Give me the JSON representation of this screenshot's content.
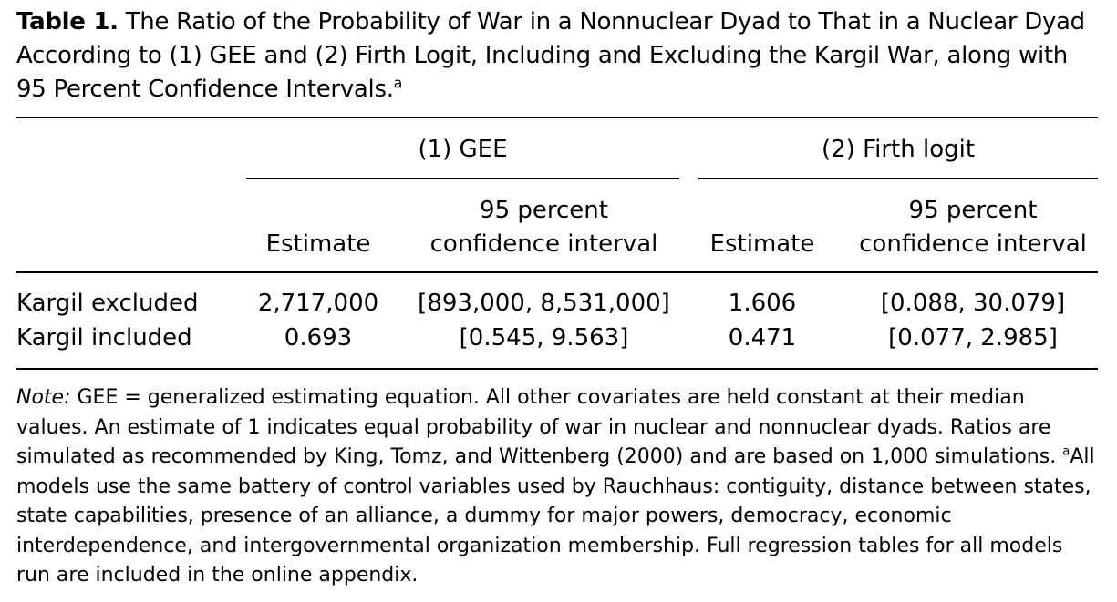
{
  "caption": {
    "label": "Table 1.",
    "text": "The Ratio of the Probability of War in a Nonnuclear Dyad to That in a Nuclear Dyad According to (1) GEE and (2) Firth Logit, Including and Excluding the Kargil War, along with 95 Percent Confidence Intervals.",
    "footnote_mark": "a"
  },
  "table": {
    "groups": [
      {
        "label": "(1) GEE"
      },
      {
        "label": "(2) Firth logit"
      }
    ],
    "subheaders": {
      "estimate": "Estimate",
      "ci_line1": "95 percent",
      "ci_line2": "confidence interval"
    },
    "rows": [
      {
        "label": "Kargil excluded",
        "gee_estimate": "2,717,000",
        "gee_ci": "[893,000, 8,531,000]",
        "firth_estimate": "1.606",
        "firth_ci": "[0.088, 30.079]"
      },
      {
        "label": "Kargil included",
        "gee_estimate": "0.693",
        "gee_ci": "[0.545, 9.563]",
        "firth_estimate": "0.471",
        "firth_ci": "[0.077, 2.985]"
      }
    ]
  },
  "note": {
    "label": "Note:",
    "text": "GEE = generalized estimating equation. All other covariates are held constant at their median values. An estimate of 1 indicates equal probability of war in nuclear and nonnuclear dyads. Ratios are simulated as recommended by King, Tomz, and Wittenberg (2000) and are based on 1,000 simulations.",
    "footnote_mark": "a",
    "footnote_text": "All models use the same battery of control variables used by Rauchhaus: contiguity, distance between states, state capabilities, presence of an alliance, a dummy for major powers, democracy, economic interdependence, and intergovernmental organization membership. Full regression tables for all models run are included in the online appendix."
  }
}
